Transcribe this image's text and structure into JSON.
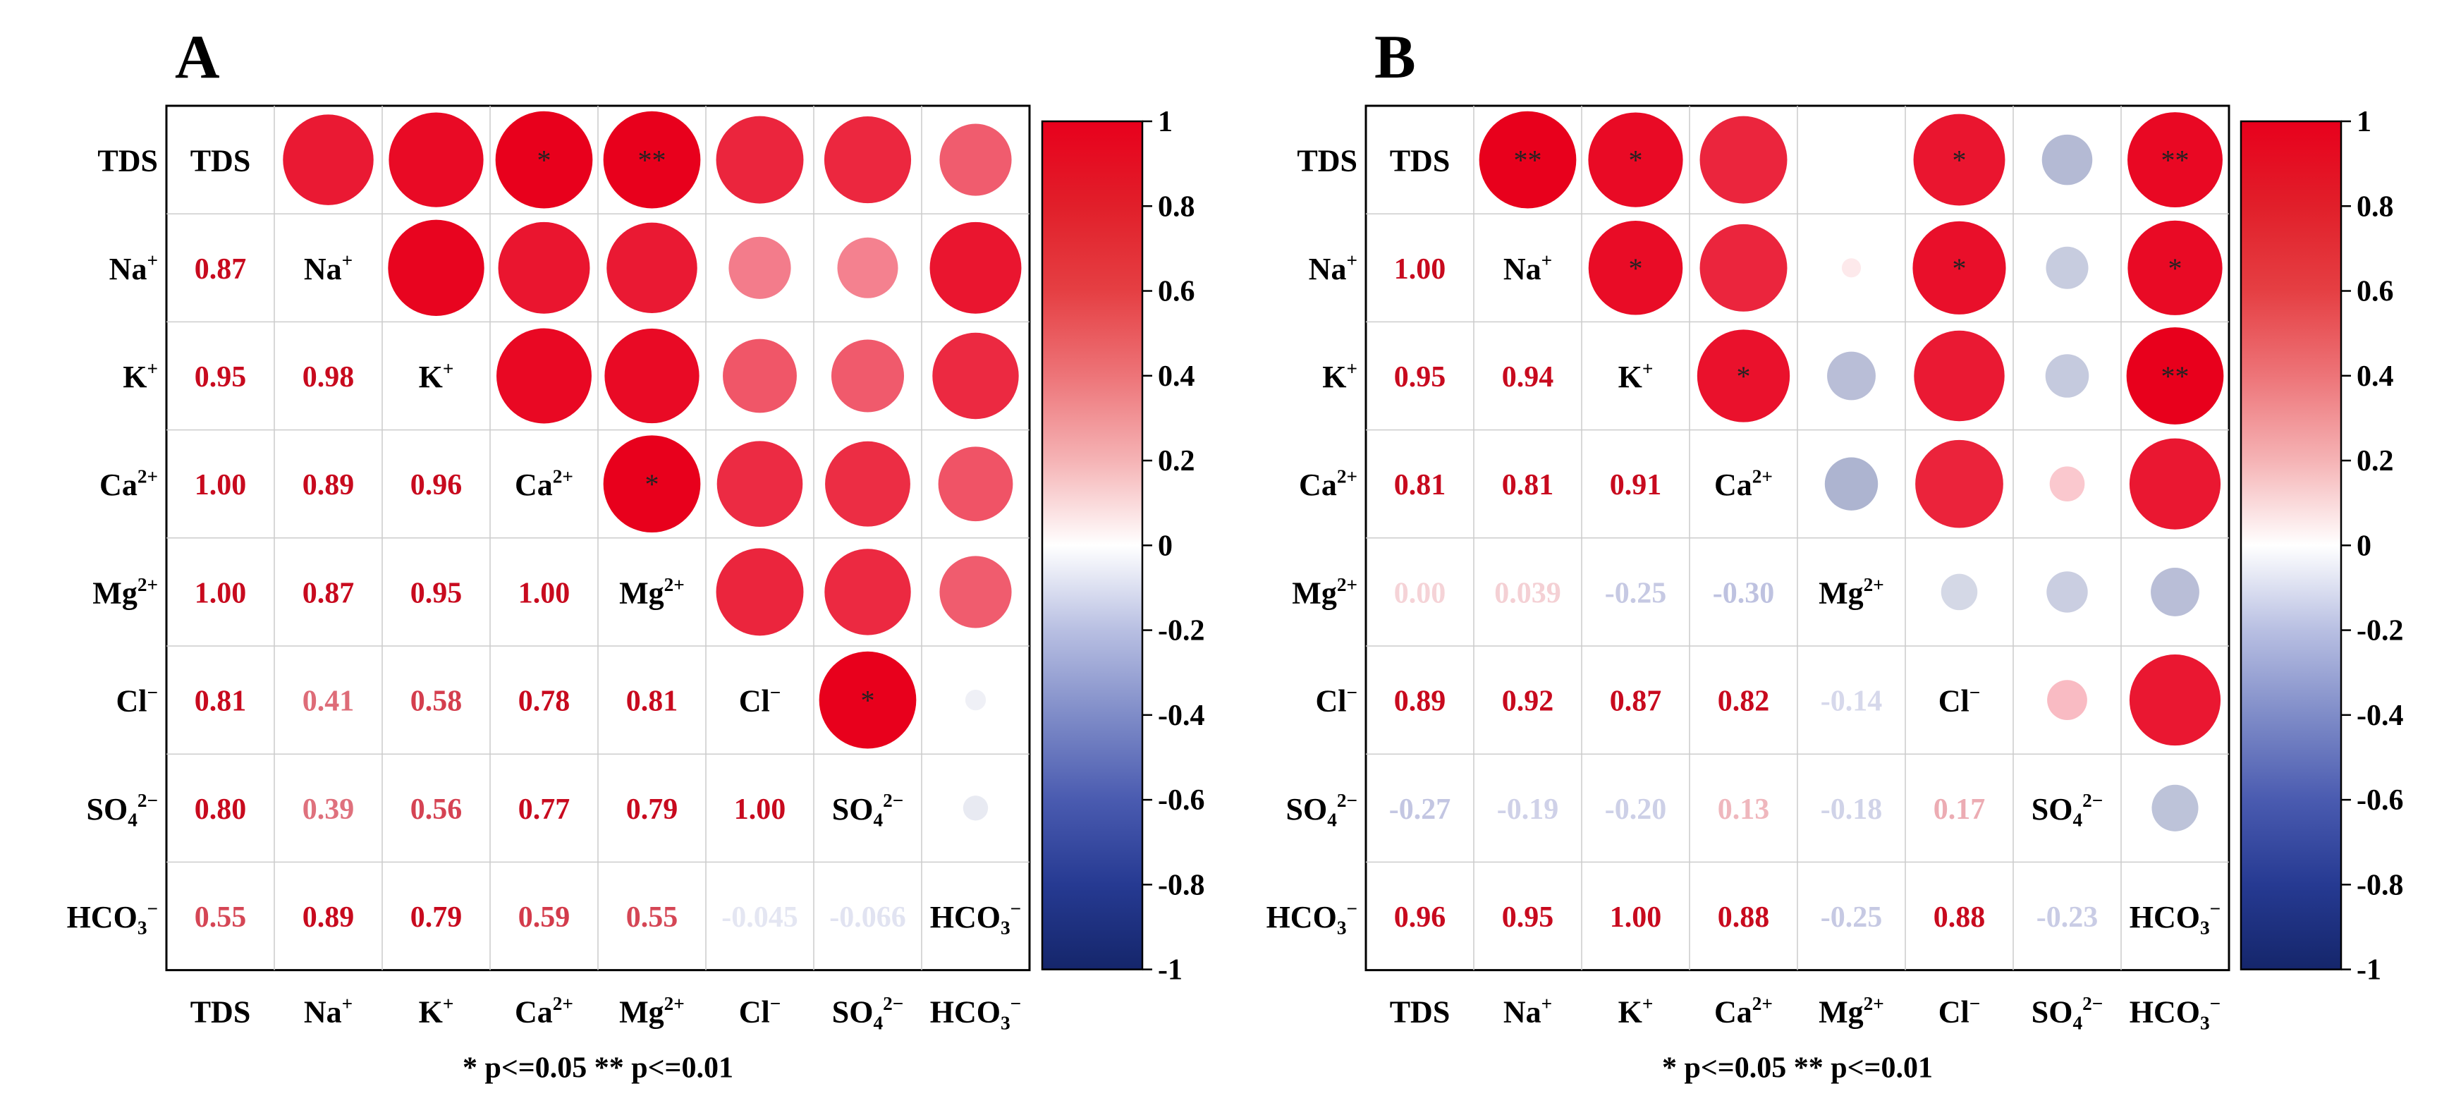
{
  "chart_data": [
    {
      "panel_label": "A",
      "type": "heatmap",
      "subtype": "correlation-matrix",
      "variables": [
        {
          "base": "TDS",
          "sup": ""
        },
        {
          "base": "Na",
          "sup": "+"
        },
        {
          "base": "K",
          "sup": "+"
        },
        {
          "base": "Ca",
          "sup": "2+"
        },
        {
          "base": "Mg",
          "sup": "2+"
        },
        {
          "base": "Cl",
          "sup": "−"
        },
        {
          "base": "SO",
          "sub": "4",
          "sup": "2−"
        },
        {
          "base": "HCO",
          "sub": "3",
          "sup": "−"
        }
      ],
      "lower_values": [
        [],
        [
          "0.87"
        ],
        [
          "0.95",
          "0.98"
        ],
        [
          "1.00",
          "0.89",
          "0.96"
        ],
        [
          "1.00",
          "0.87",
          "0.95",
          "1.00"
        ],
        [
          "0.81",
          "0.41",
          "0.58",
          "0.78",
          "0.81"
        ],
        [
          "0.80",
          "0.39",
          "0.56",
          "0.77",
          "0.79",
          "1.00"
        ],
        [
          "0.55",
          "0.89",
          "0.79",
          "0.59",
          "0.55",
          "-0.045",
          "-0.066"
        ]
      ],
      "upper_values": [
        [
          null,
          0.87,
          0.95,
          1.0,
          1.0,
          0.81,
          0.8,
          0.55
        ],
        [
          null,
          null,
          0.98,
          0.89,
          0.87,
          0.41,
          0.39,
          0.89
        ],
        [
          null,
          null,
          null,
          0.96,
          0.95,
          0.58,
          0.56,
          0.79
        ],
        [
          null,
          null,
          null,
          null,
          1.0,
          0.78,
          0.77,
          0.59
        ],
        [
          null,
          null,
          null,
          null,
          null,
          0.81,
          0.79,
          0.55
        ],
        [
          null,
          null,
          null,
          null,
          null,
          null,
          1.0,
          -0.045
        ],
        [
          null,
          null,
          null,
          null,
          null,
          null,
          null,
          -0.066
        ],
        [
          null,
          null,
          null,
          null,
          null,
          null,
          null,
          null
        ]
      ],
      "stars": [
        [
          "",
          "",
          "",
          "*",
          "**",
          "",
          "",
          ""
        ],
        [
          "",
          "",
          "",
          "",
          "",
          "",
          "",
          ""
        ],
        [
          "",
          "",
          "",
          "",
          "",
          "",
          "",
          ""
        ],
        [
          "",
          "",
          "",
          "",
          "*",
          "",
          "",
          ""
        ],
        [
          "",
          "",
          "",
          "",
          "",
          "",
          "",
          ""
        ],
        [
          "",
          "",
          "",
          "",
          "",
          "",
          "*",
          ""
        ],
        [
          "",
          "",
          "",
          "",
          "",
          "",
          "",
          ""
        ],
        [
          "",
          "",
          "",
          "",
          "",
          "",
          "",
          ""
        ]
      ],
      "colorbar_ticks": [
        "1",
        "0.8",
        "0.6",
        "0.4",
        "0.2",
        "0",
        "-0.2",
        "-0.4",
        "-0.6",
        "-0.8",
        "-1"
      ],
      "colorbar_range": [
        -1,
        1
      ],
      "significance_note": "* p<=0.05  ** p<=0.01"
    },
    {
      "panel_label": "B",
      "type": "heatmap",
      "subtype": "correlation-matrix",
      "variables": [
        {
          "base": "TDS",
          "sup": ""
        },
        {
          "base": "Na",
          "sup": "+"
        },
        {
          "base": "K",
          "sup": "+"
        },
        {
          "base": "Ca",
          "sup": "2+"
        },
        {
          "base": "Mg",
          "sup": "2+"
        },
        {
          "base": "Cl",
          "sup": "−"
        },
        {
          "base": "SO",
          "sub": "4",
          "sup": "2−"
        },
        {
          "base": "HCO",
          "sub": "3",
          "sup": "−"
        }
      ],
      "lower_values": [
        [],
        [
          "1.00"
        ],
        [
          "0.95",
          "0.94"
        ],
        [
          "0.81",
          "0.81",
          "0.91"
        ],
        [
          "0.00",
          "0.039",
          "-0.25",
          "-0.30"
        ],
        [
          "0.89",
          "0.92",
          "0.87",
          "0.82",
          "-0.14"
        ],
        [
          "-0.27",
          "-0.19",
          "-0.20",
          "0.13",
          "-0.18",
          "0.17"
        ],
        [
          "0.96",
          "0.95",
          "1.00",
          "0.88",
          "-0.25",
          "0.88",
          "-0.23"
        ]
      ],
      "upper_values": [
        [
          null,
          1.0,
          0.95,
          0.81,
          0.0,
          0.89,
          -0.27,
          0.96
        ],
        [
          null,
          null,
          0.94,
          0.81,
          0.039,
          0.92,
          -0.19,
          0.95
        ],
        [
          null,
          null,
          null,
          0.91,
          -0.25,
          0.87,
          -0.2,
          1.0
        ],
        [
          null,
          null,
          null,
          null,
          -0.3,
          0.82,
          0.13,
          0.88
        ],
        [
          null,
          null,
          null,
          null,
          null,
          -0.14,
          -0.18,
          -0.25
        ],
        [
          null,
          null,
          null,
          null,
          null,
          null,
          0.17,
          0.88
        ],
        [
          null,
          null,
          null,
          null,
          null,
          null,
          null,
          -0.23
        ],
        [
          null,
          null,
          null,
          null,
          null,
          null,
          null,
          null
        ]
      ],
      "stars": [
        [
          "",
          "**",
          "*",
          "",
          "",
          "*",
          "",
          "**"
        ],
        [
          "",
          "",
          "*",
          "",
          "",
          "*",
          "",
          "*"
        ],
        [
          "",
          "",
          "",
          "*",
          "",
          "",
          "",
          "**"
        ],
        [
          "",
          "",
          "",
          "",
          "",
          "",
          "",
          ""
        ],
        [
          "",
          "",
          "",
          "",
          "",
          "",
          "",
          ""
        ],
        [
          "",
          "",
          "",
          "",
          "",
          "",
          "",
          ""
        ],
        [
          "",
          "",
          "",
          "",
          "",
          "",
          "",
          ""
        ],
        [
          "",
          "",
          "",
          "",
          "",
          "",
          "",
          ""
        ]
      ],
      "colorbar_ticks": [
        "1",
        "0.8",
        "0.6",
        "0.4",
        "0.2",
        "0",
        "-0.2",
        "-0.4",
        "-0.6",
        "-0.8",
        "-1"
      ],
      "colorbar_range": [
        -1,
        1
      ],
      "significance_note": "* p<=0.05  ** p<=0.01"
    }
  ],
  "colors": {
    "positive": "#e8001c",
    "zero": "#ffffff",
    "negative": "#1a2d7c",
    "label_text": "#000000",
    "frame": "#000000",
    "grid": "#cccccc"
  }
}
